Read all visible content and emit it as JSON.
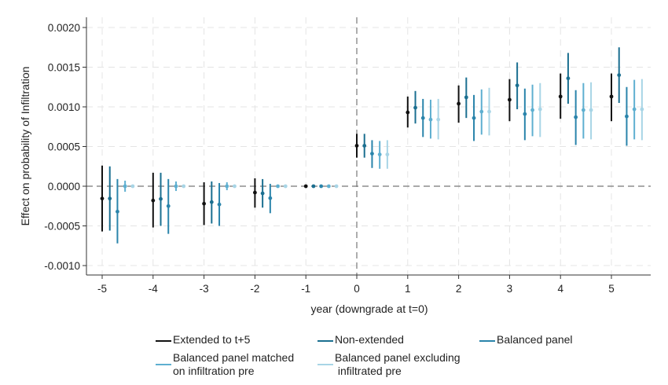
{
  "chart_data": {
    "type": "scatter",
    "subtype": "coefficient plot with confidence intervals",
    "title": "",
    "xlabel": "year (downgrade at t=0)",
    "ylabel": "Effect on probability of Infiltration",
    "x": [
      -5,
      -4,
      -3,
      -2,
      -1,
      0,
      1,
      2,
      3,
      4,
      5
    ],
    "xticks": [
      "-5",
      "-4",
      "-3",
      "-2",
      "-1",
      "0",
      "1",
      "2",
      "3",
      "4",
      "5"
    ],
    "yticks": [
      "-0.0010",
      "-0.0005",
      "0.0000",
      "0.0005",
      "0.0010",
      "0.0015",
      "0.0020"
    ],
    "ytick_values": [
      -0.001,
      -0.0005,
      0,
      0.0005,
      0.001,
      0.0015,
      0.002
    ],
    "xlim": [
      -5.3,
      5.77
    ],
    "ylim": [
      -0.00112,
      0.00214
    ],
    "grid": true,
    "reference_lines": {
      "x": 0,
      "y": 0
    },
    "legend_position": "bottom",
    "series_offset_years": 0.15,
    "series": [
      {
        "name": "Extended to t+5",
        "color": "#111111",
        "estimate": [
          -0.000155,
          -0.00018,
          -0.00022,
          -8e-05,
          0,
          0.00051,
          0.00093,
          0.00104,
          0.00109,
          0.00113,
          0.00113
        ],
        "ci_low": [
          -0.00057,
          -0.00052,
          -0.00049,
          -0.00027,
          -1e-05,
          0.00036,
          0.00074,
          0.0008,
          0.00082,
          0.00085,
          0.00082
        ],
        "ci_high": [
          0.00026,
          0.00017,
          5e-05,
          0.0001,
          1e-05,
          0.00066,
          0.00113,
          0.00127,
          0.00135,
          0.00142,
          0.00142
        ]
      },
      {
        "name": "Non-extended",
        "color": "#1b6f90",
        "estimate": [
          -0.000155,
          -0.00016,
          -0.0002,
          -9e-05,
          0,
          0.00051,
          0.00099,
          0.00112,
          0.00127,
          0.00136,
          0.0014
        ],
        "ci_low": [
          -0.00056,
          -0.0005,
          -0.00047,
          -0.00027,
          -1e-05,
          0.00036,
          0.00079,
          0.00086,
          0.00097,
          0.00104,
          0.00105
        ],
        "ci_high": [
          0.00025,
          0.00017,
          6e-05,
          9e-05,
          1e-05,
          0.00066,
          0.0012,
          0.00137,
          0.00156,
          0.00168,
          0.00175
        ]
      },
      {
        "name": "Balanced panel",
        "color": "#2a84ab",
        "estimate": [
          -0.00032,
          -0.00025,
          -0.00023,
          -0.00015,
          0,
          0.00041,
          0.00086,
          0.00086,
          0.00091,
          0.00087,
          0.00088
        ],
        "ci_low": [
          -0.00072,
          -0.0006,
          -0.0005,
          -0.00034,
          -1e-05,
          0.00023,
          0.00062,
          0.00057,
          0.00058,
          0.00052,
          0.00051
        ],
        "ci_high": [
          9e-05,
          9e-05,
          4e-05,
          3e-05,
          1e-05,
          0.00058,
          0.0011,
          0.00115,
          0.00123,
          0.00121,
          0.00125
        ]
      },
      {
        "name": "Balanced panel matched on infiltration pre",
        "color": "#5eafd0",
        "estimate": [
          0,
          0,
          0,
          0,
          0,
          0.0004,
          0.00084,
          0.00094,
          0.00096,
          0.00096,
          0.00097
        ],
        "ci_low": [
          -7e-05,
          -6e-05,
          -5e-05,
          -2e-05,
          -1e-05,
          0.00022,
          0.0006,
          0.00065,
          0.00063,
          0.0006,
          0.00059
        ],
        "ci_high": [
          7e-05,
          6e-05,
          5e-05,
          2e-05,
          1e-05,
          0.00057,
          0.00109,
          0.00122,
          0.00128,
          0.0013,
          0.00134
        ]
      },
      {
        "name": "Balanced panel excluding infiltrated pre",
        "color": "#a8d5e6",
        "estimate": [
          0,
          0,
          0,
          0,
          0,
          0.0004,
          0.00084,
          0.00094,
          0.00097,
          0.00096,
          0.00097
        ],
        "ci_low": [
          -1e-05,
          -1e-05,
          -1e-05,
          -1e-05,
          -1e-05,
          0.00022,
          0.00059,
          0.00064,
          0.00062,
          0.00059,
          0.00058
        ],
        "ci_high": [
          1e-05,
          1e-05,
          1e-05,
          1e-05,
          1e-05,
          0.00058,
          0.0011,
          0.00124,
          0.0013,
          0.00131,
          0.00135
        ]
      }
    ]
  },
  "legend": {
    "items": [
      {
        "line1": "Extended to t+5",
        "line2": ""
      },
      {
        "line1": "Non-extended",
        "line2": ""
      },
      {
        "line1": "Balanced panel",
        "line2": ""
      },
      {
        "line1": "Balanced panel matched",
        "line2": "on infiltration pre"
      },
      {
        "line1": "Balanced panel excluding",
        "line2": " infiltrated pre"
      }
    ]
  }
}
